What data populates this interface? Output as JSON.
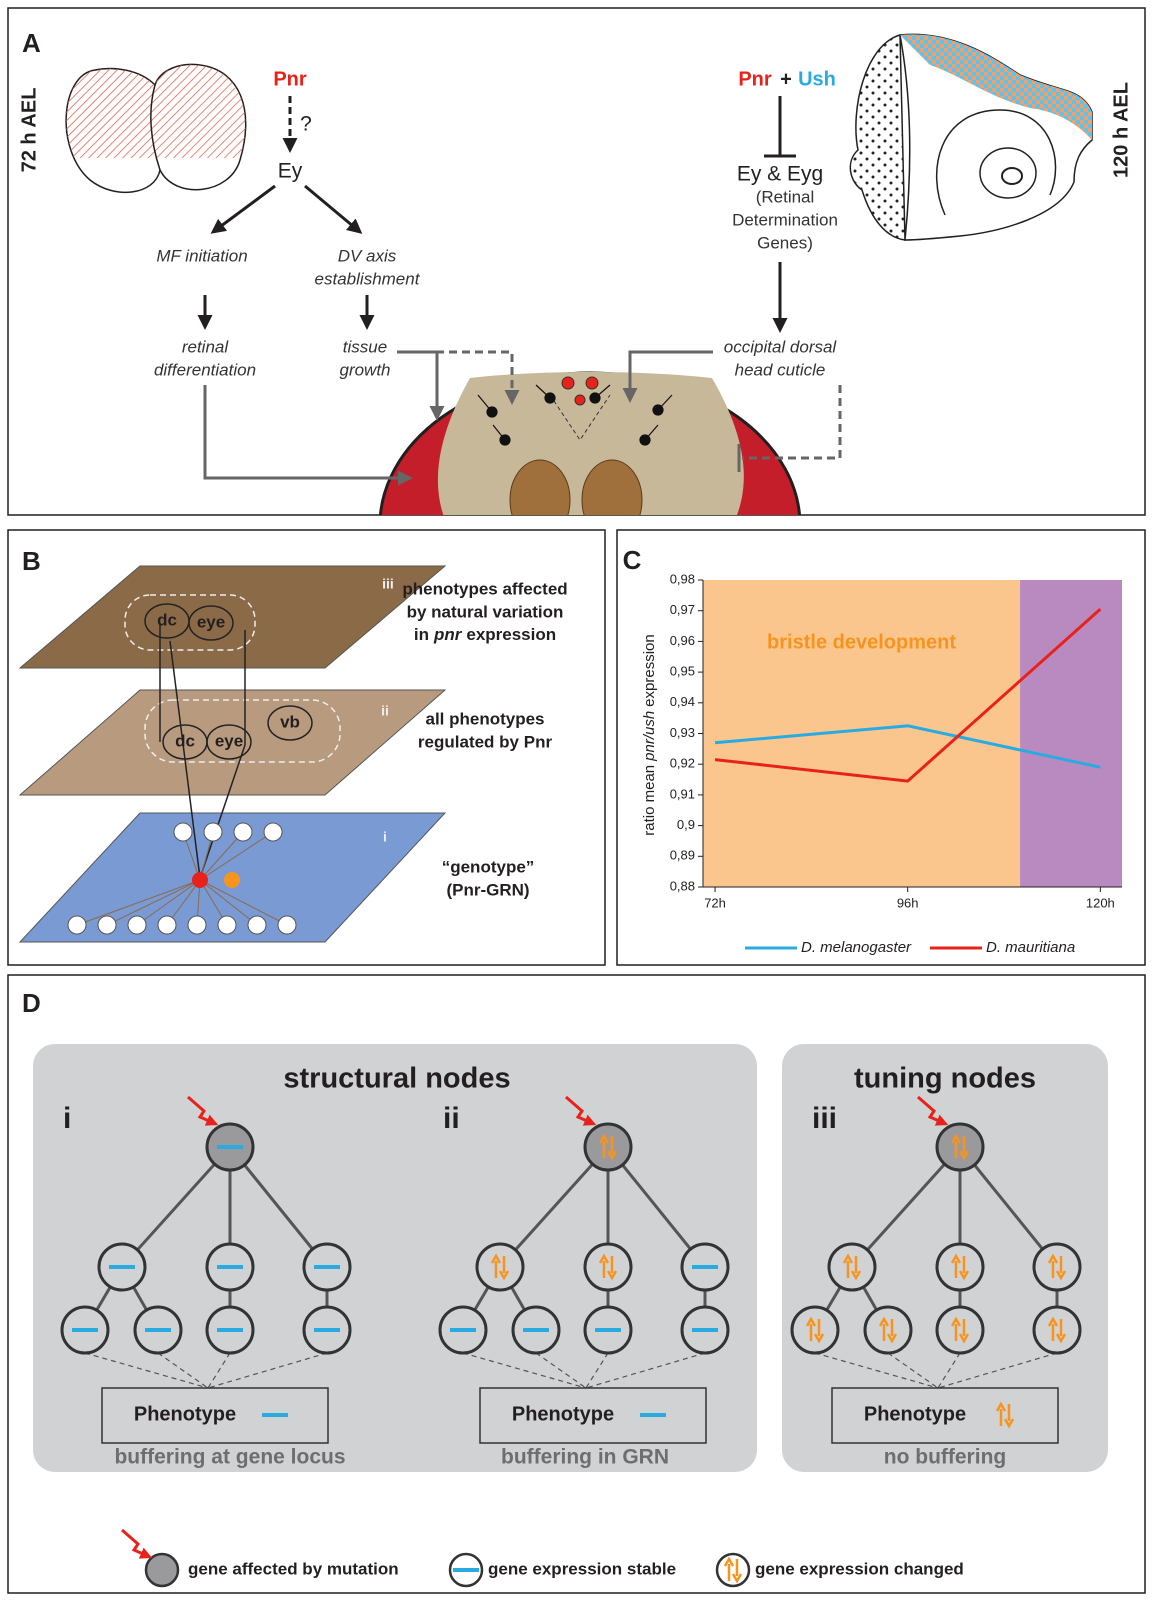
{
  "panel_a": {
    "label": "A",
    "stage_left": "72 h AEL",
    "stage_right": "120 h AEL",
    "pnr_left": "Pnr",
    "question": "?",
    "ey": "Ey",
    "mf": "MF initiation",
    "dv": [
      "DV axis",
      "establishment"
    ],
    "retinal": [
      "retinal",
      "differentiation"
    ],
    "tissue": [
      "tissue",
      "growth"
    ],
    "pnr_right": "Pnr",
    "plus": "+",
    "ush": "Ush",
    "ey_eyg": "Ey & Eyg",
    "rdg": [
      "(Retinal",
      "Determination",
      "Genes)"
    ],
    "occipital": [
      "occipital dorsal",
      "head cuticle"
    ]
  },
  "panel_b": {
    "label": "B",
    "layers": [
      "iii",
      "ii",
      "i"
    ],
    "top_nodes": [
      "dc",
      "eye"
    ],
    "mid_nodes": [
      "dc",
      "eye",
      "vb"
    ],
    "top_text": {
      "lines": [
        "phenotypes affected",
        "by natural variation"
      ],
      "before": "in",
      "italic": "pnr",
      "after": "expression"
    },
    "mid_text": [
      "all phenotypes",
      "regulated by Pnr"
    ],
    "bottom_text": [
      "“genotype”",
      "(Pnr-GRN)"
    ]
  },
  "chart_data": {
    "type": "line",
    "label": "C",
    "y_label": {
      "prefix": "ratio mean",
      "italic": "pnr/ush",
      "suffix": "expression"
    },
    "x": [
      72,
      96,
      120
    ],
    "xlim": [
      70.5,
      122.7
    ],
    "xticks": [
      {
        "value": 72,
        "label": "72h"
      },
      {
        "value": 96,
        "label": "96h"
      },
      {
        "value": 120,
        "label": "120h"
      }
    ],
    "ylim": [
      0.88,
      0.98
    ],
    "yticks": [
      {
        "value": 0.88,
        "label": "0,88"
      },
      {
        "value": 0.89,
        "label": "0,89"
      },
      {
        "value": 0.9,
        "label": "0,9"
      },
      {
        "value": 0.91,
        "label": "0,91"
      },
      {
        "value": 0.92,
        "label": "0,92"
      },
      {
        "value": 0.93,
        "label": "0,93"
      },
      {
        "value": 0.94,
        "label": "0,94"
      },
      {
        "value": 0.95,
        "label": "0,95"
      },
      {
        "value": 0.96,
        "label": "0,96"
      },
      {
        "value": 0.97,
        "label": "0,97"
      },
      {
        "value": 0.98,
        "label": "0,98"
      }
    ],
    "regions": [
      {
        "label": "bristle development",
        "label_color": "#f7941d",
        "from": 70.5,
        "to": 110,
        "color": "#fbc68e"
      },
      {
        "from": 110,
        "to": 122.7,
        "color": "#b98abf"
      }
    ],
    "series": [
      {
        "name": "D. melanogaster",
        "color": "#29abe2",
        "values": [
          0.927,
          0.9325,
          0.919
        ]
      },
      {
        "name": "D. mauritiana",
        "color": "#e8221b",
        "values": [
          0.9215,
          0.9145,
          0.9705
        ]
      }
    ],
    "legend": "bottom"
  },
  "panel_d": {
    "label": "D",
    "groups": [
      {
        "title": "structural nodes"
      },
      {
        "title": "tuning nodes"
      }
    ],
    "cases": [
      {
        "numeral": "i",
        "phenotype": "Phenotype",
        "caption": "buffering at gene locus"
      },
      {
        "numeral": "ii",
        "phenotype": "Phenotype",
        "caption": "buffering in GRN"
      },
      {
        "numeral": "iii",
        "phenotype": "Phenotype",
        "caption": "no buffering"
      }
    ],
    "legend": [
      "gene affected by mutation",
      "gene expression stable",
      "gene expression changed"
    ]
  }
}
